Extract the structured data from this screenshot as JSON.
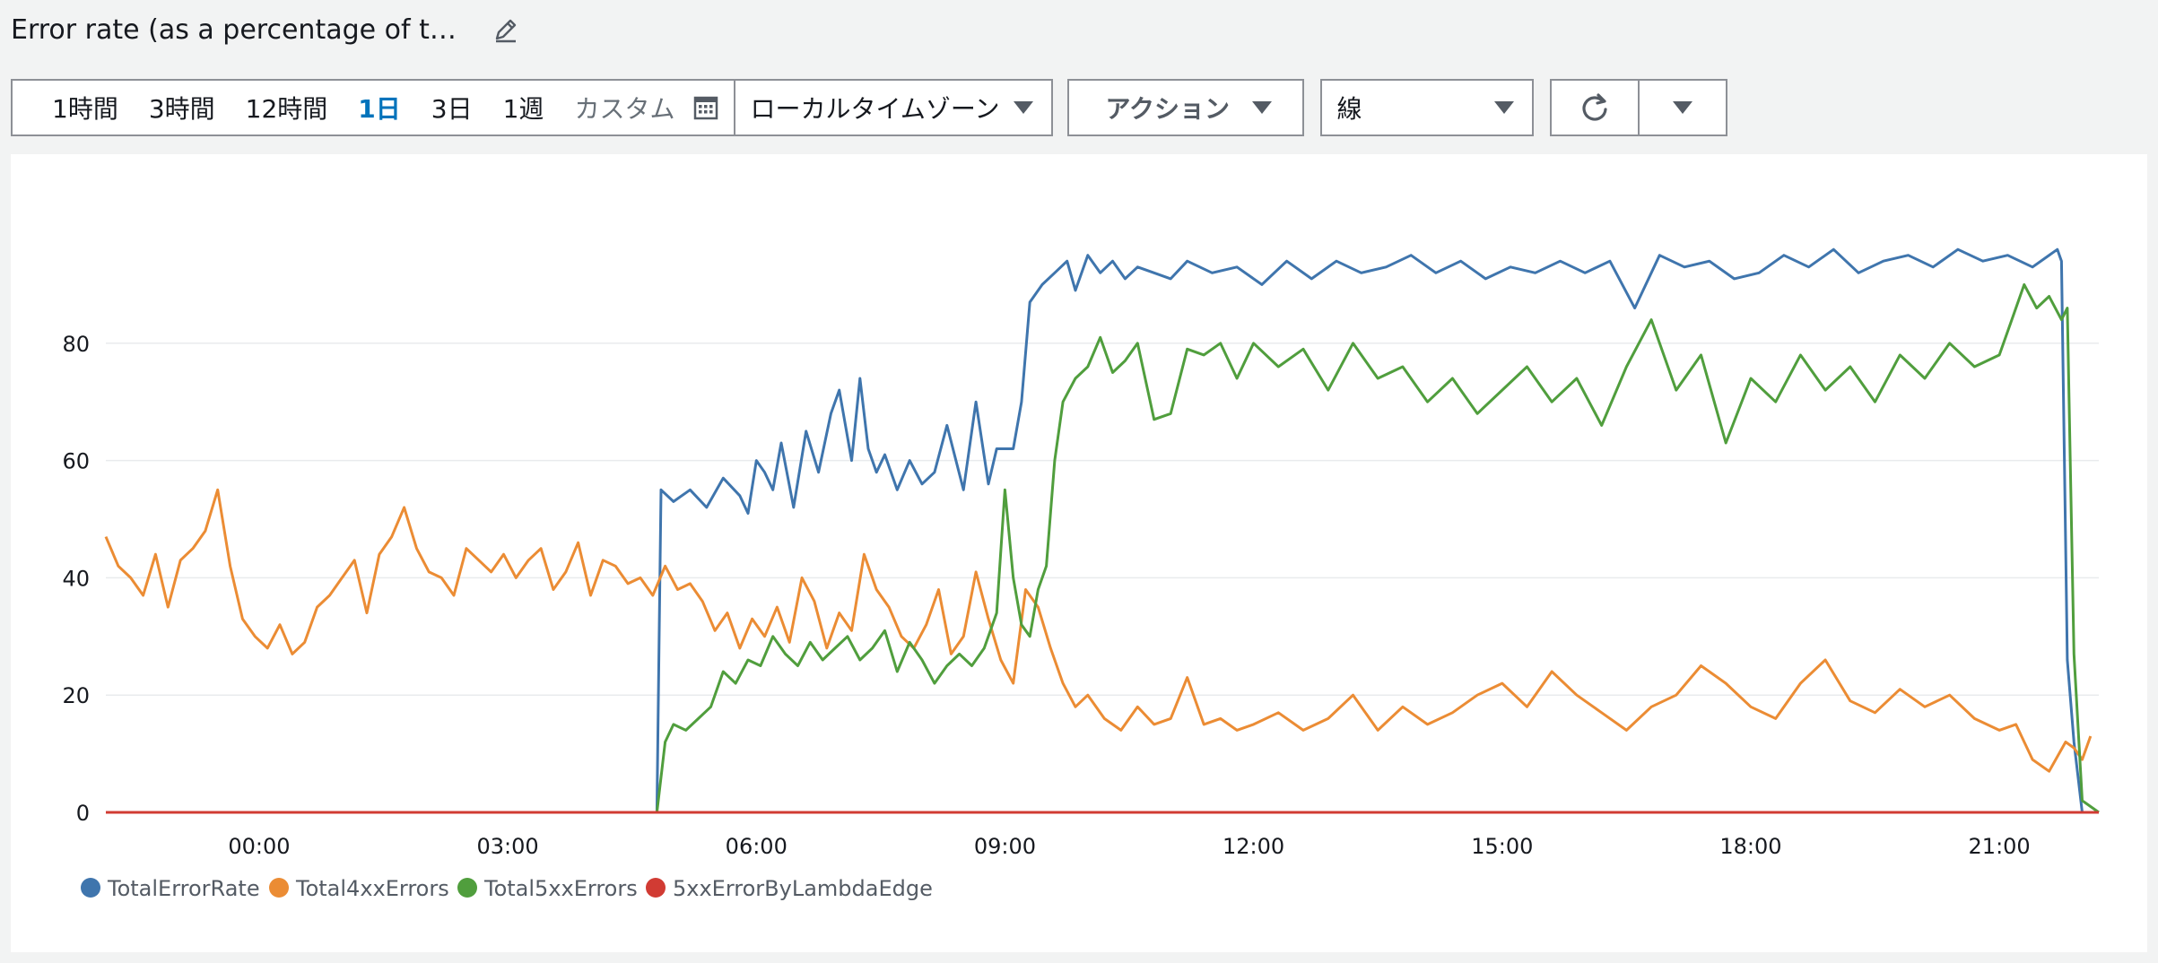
{
  "header": {
    "title": "Error rate (as a percentage of t…"
  },
  "toolbar": {
    "ranges": [
      "1時間",
      "3時間",
      "12時間",
      "1日",
      "3日",
      "1週"
    ],
    "active_range": "1日",
    "custom_label": "カスタム",
    "timezone_label": "ローカルタイムゾーン",
    "action_label": "アクション",
    "chart_type_label": "線"
  },
  "icons": {
    "edit": "pencil-icon",
    "calendar": "calendar-icon",
    "refresh": "refresh-icon",
    "dropdown": "caret-down-icon"
  },
  "chart_data": {
    "type": "line",
    "title": "",
    "xlabel": "",
    "ylabel": "",
    "ylim": [
      0,
      100
    ],
    "yticks": [
      0,
      20,
      40,
      60,
      80
    ],
    "xlim": [
      -1.85,
      22.2
    ],
    "x_ticks": [
      0,
      3,
      6,
      9,
      12,
      15,
      18,
      21
    ],
    "x_tick_labels": [
      "00:00",
      "03:00",
      "06:00",
      "09:00",
      "12:00",
      "15:00",
      "18:00",
      "21:00"
    ],
    "x_unit": "hours",
    "grid": true,
    "legend_position": "bottom-left",
    "series": [
      {
        "name": "TotalErrorRate",
        "color": "#3f75ad",
        "x": [
          -1.85,
          4.8,
          4.85,
          5.0,
          5.2,
          5.4,
          5.6,
          5.8,
          5.9,
          6.0,
          6.1,
          6.2,
          6.3,
          6.45,
          6.6,
          6.75,
          6.9,
          7.0,
          7.15,
          7.25,
          7.35,
          7.45,
          7.55,
          7.7,
          7.85,
          8.0,
          8.15,
          8.3,
          8.5,
          8.65,
          8.8,
          8.9,
          9.0,
          9.1,
          9.2,
          9.3,
          9.45,
          9.6,
          9.75,
          9.85,
          10.0,
          10.15,
          10.3,
          10.45,
          10.6,
          10.8,
          11.0,
          11.2,
          11.5,
          11.8,
          12.1,
          12.4,
          12.7,
          13.0,
          13.3,
          13.6,
          13.9,
          14.2,
          14.5,
          14.8,
          15.1,
          15.4,
          15.7,
          16.0,
          16.3,
          16.6,
          16.9,
          17.2,
          17.5,
          17.8,
          18.1,
          18.4,
          18.7,
          19.0,
          19.3,
          19.6,
          19.9,
          20.2,
          20.5,
          20.8,
          21.1,
          21.4,
          21.7,
          21.75,
          21.82,
          21.9,
          22.0,
          22.2
        ],
        "values": [
          0,
          0,
          55,
          53,
          55,
          52,
          57,
          54,
          51,
          60,
          58,
          55,
          63,
          52,
          65,
          58,
          68,
          72,
          60,
          74,
          62,
          58,
          61,
          55,
          60,
          56,
          58,
          66,
          55,
          70,
          56,
          62,
          62,
          62,
          70,
          87,
          90,
          92,
          94,
          89,
          95,
          92,
          94,
          91,
          93,
          92,
          91,
          94,
          92,
          93,
          90,
          94,
          91,
          94,
          92,
          93,
          95,
          92,
          94,
          91,
          93,
          92,
          94,
          92,
          94,
          86,
          95,
          93,
          94,
          91,
          92,
          95,
          93,
          96,
          92,
          94,
          95,
          93,
          96,
          94,
          95,
          93,
          96,
          94,
          26,
          12,
          0,
          0
        ]
      },
      {
        "name": "Total4xxErrors",
        "color": "#eb8c34",
        "x": [
          -1.85,
          -1.7,
          -1.55,
          -1.4,
          -1.25,
          -1.1,
          -0.95,
          -0.8,
          -0.65,
          -0.5,
          -0.35,
          -0.2,
          -0.05,
          0.1,
          0.25,
          0.4,
          0.55,
          0.7,
          0.85,
          1.0,
          1.15,
          1.3,
          1.45,
          1.6,
          1.75,
          1.9,
          2.05,
          2.2,
          2.35,
          2.5,
          2.65,
          2.8,
          2.95,
          3.1,
          3.25,
          3.4,
          3.55,
          3.7,
          3.85,
          4.0,
          4.15,
          4.3,
          4.45,
          4.6,
          4.75,
          4.9,
          5.05,
          5.2,
          5.35,
          5.5,
          5.65,
          5.8,
          5.95,
          6.1,
          6.25,
          6.4,
          6.55,
          6.7,
          6.85,
          7.0,
          7.15,
          7.3,
          7.45,
          7.6,
          7.75,
          7.9,
          8.05,
          8.2,
          8.35,
          8.5,
          8.65,
          8.8,
          8.95,
          9.1,
          9.25,
          9.4,
          9.55,
          9.7,
          9.85,
          10.0,
          10.2,
          10.4,
          10.6,
          10.8,
          11.0,
          11.2,
          11.4,
          11.6,
          11.8,
          12.0,
          12.3,
          12.6,
          12.9,
          13.2,
          13.5,
          13.8,
          14.1,
          14.4,
          14.7,
          15.0,
          15.3,
          15.6,
          15.9,
          16.2,
          16.5,
          16.8,
          17.1,
          17.4,
          17.7,
          18.0,
          18.3,
          18.6,
          18.9,
          19.2,
          19.5,
          19.8,
          20.1,
          20.4,
          20.7,
          21.0,
          21.2,
          21.4,
          21.6,
          21.8,
          21.9,
          22.0,
          22.1
        ],
        "values": [
          47,
          42,
          40,
          37,
          44,
          35,
          43,
          45,
          48,
          55,
          42,
          33,
          30,
          28,
          32,
          27,
          29,
          35,
          37,
          40,
          43,
          34,
          44,
          47,
          52,
          45,
          41,
          40,
          37,
          45,
          43,
          41,
          44,
          40,
          43,
          45,
          38,
          41,
          46,
          37,
          43,
          42,
          39,
          40,
          37,
          42,
          38,
          39,
          36,
          31,
          34,
          28,
          33,
          30,
          35,
          29,
          40,
          36,
          28,
          34,
          31,
          44,
          38,
          35,
          30,
          28,
          32,
          38,
          27,
          30,
          41,
          33,
          26,
          22,
          38,
          35,
          28,
          22,
          18,
          20,
          16,
          14,
          18,
          15,
          16,
          23,
          15,
          16,
          14,
          15,
          17,
          14,
          16,
          20,
          14,
          18,
          15,
          17,
          20,
          22,
          18,
          24,
          20,
          17,
          14,
          18,
          20,
          25,
          22,
          18,
          16,
          22,
          26,
          19,
          17,
          21,
          18,
          20,
          16,
          14,
          15,
          9,
          7,
          12,
          11,
          9,
          13
        ]
      },
      {
        "name": "Total5xxErrors",
        "color": "#509e3d",
        "x": [
          -1.85,
          4.8,
          4.9,
          5.0,
          5.15,
          5.3,
          5.45,
          5.6,
          5.75,
          5.9,
          6.05,
          6.2,
          6.35,
          6.5,
          6.65,
          6.8,
          6.95,
          7.1,
          7.25,
          7.4,
          7.55,
          7.7,
          7.85,
          8.0,
          8.15,
          8.3,
          8.45,
          8.6,
          8.75,
          8.9,
          9.0,
          9.1,
          9.2,
          9.3,
          9.4,
          9.5,
          9.6,
          9.7,
          9.85,
          10.0,
          10.15,
          10.3,
          10.45,
          10.6,
          10.8,
          11.0,
          11.2,
          11.4,
          11.6,
          11.8,
          12.0,
          12.3,
          12.6,
          12.9,
          13.2,
          13.5,
          13.8,
          14.1,
          14.4,
          14.7,
          15.0,
          15.3,
          15.6,
          15.9,
          16.2,
          16.5,
          16.8,
          17.1,
          17.4,
          17.7,
          18.0,
          18.3,
          18.6,
          18.9,
          19.2,
          19.5,
          19.8,
          20.1,
          20.4,
          20.7,
          21.0,
          21.15,
          21.3,
          21.45,
          21.6,
          21.75,
          21.82,
          21.9,
          22.0,
          22.2
        ],
        "values": [
          0,
          0,
          12,
          15,
          14,
          16,
          18,
          24,
          22,
          26,
          25,
          30,
          27,
          25,
          29,
          26,
          28,
          30,
          26,
          28,
          31,
          24,
          29,
          26,
          22,
          25,
          27,
          25,
          28,
          34,
          55,
          40,
          32,
          30,
          38,
          42,
          60,
          70,
          74,
          76,
          81,
          75,
          77,
          80,
          67,
          68,
          79,
          78,
          80,
          74,
          80,
          76,
          79,
          72,
          80,
          74,
          76,
          70,
          74,
          68,
          72,
          76,
          70,
          74,
          66,
          76,
          84,
          72,
          78,
          63,
          74,
          70,
          78,
          72,
          76,
          70,
          78,
          74,
          80,
          76,
          78,
          84,
          90,
          86,
          88,
          84,
          86,
          27,
          2,
          0
        ]
      },
      {
        "name": "5xxErrorByLambdaEdge",
        "color": "#d13b33",
        "x": [
          -1.85,
          22.2
        ],
        "values": [
          0,
          0
        ]
      }
    ]
  }
}
